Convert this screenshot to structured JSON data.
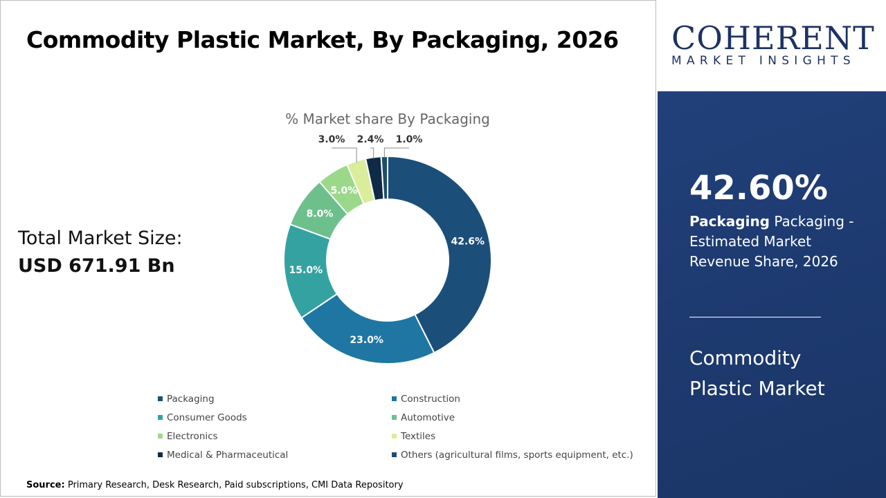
{
  "title": "Commodity Plastic Market, By Packaging, 2026",
  "total_market": {
    "label": "Total Market Size:",
    "value": "USD 671.91 Bn"
  },
  "source": {
    "label": "Source:",
    "text": "Primary Research, Desk Research, Paid subscriptions, CMI Data Repository"
  },
  "logo": {
    "name": "COHERENT",
    "tagline": "MARKET INSIGHTS"
  },
  "panel": {
    "percent": "42.60%",
    "desc_bold": "Packaging",
    "desc_rest": "Packaging - Estimated Market Revenue Share, 2026",
    "market_name": "Commodity Plastic Market"
  },
  "chart_data": {
    "type": "pie",
    "donut": true,
    "title": "% Market share By Packaging",
    "legend_position": "bottom",
    "categories": [
      "Packaging",
      "Construction",
      "Consumer Goods",
      "Automotive",
      "Electronics",
      "Textiles",
      "Medical & Pharmaceutical",
      "Others (agricultural films, sports equipment, etc.)"
    ],
    "values": [
      42.6,
      23.0,
      15.0,
      8.0,
      5.0,
      3.0,
      2.4,
      1.0
    ],
    "data_labels": [
      "42.6%",
      "23.0%",
      "15.0%",
      "8.0%",
      "5.0%",
      "3.0%",
      "2.4%",
      "1.0%"
    ],
    "colors": [
      "#1b4f7a",
      "#1f76a3",
      "#35a2a2",
      "#6dc08c",
      "#9bd98a",
      "#d9ed9b",
      "#0f2a47",
      "#1c4d6e"
    ]
  }
}
